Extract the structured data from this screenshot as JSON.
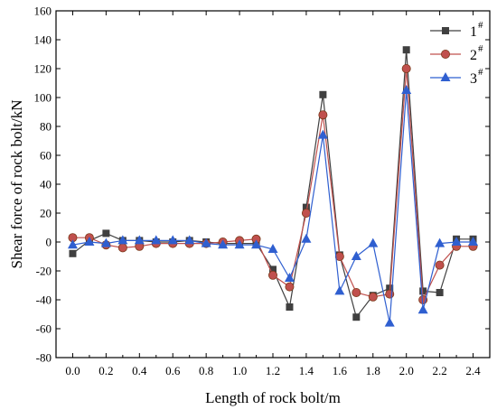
{
  "chart_data": {
    "type": "line",
    "title": "",
    "xlabel": "Length of rock bolt/m",
    "ylabel": "Shear force of rock bolt/kN",
    "xlim": [
      -0.1,
      2.5
    ],
    "ylim": [
      -80,
      160
    ],
    "xticks": [
      "0.0",
      "0.2",
      "0.4",
      "0.6",
      "0.8",
      "1.0",
      "1.2",
      "1.4",
      "1.6",
      "1.8",
      "2.0",
      "2.2",
      "2.4"
    ],
    "yticks": [
      "-80",
      "-60",
      "-40",
      "-20",
      "0",
      "20",
      "40",
      "60",
      "80",
      "100",
      "120",
      "140",
      "160"
    ],
    "legend_position": "top-right",
    "x": [
      0.0,
      0.1,
      0.2,
      0.3,
      0.4,
      0.5,
      0.6,
      0.7,
      0.8,
      0.9,
      1.0,
      1.1,
      1.2,
      1.3,
      1.4,
      1.5,
      1.6,
      1.7,
      1.8,
      1.9,
      2.0,
      2.1,
      2.2,
      2.3,
      2.4
    ],
    "series": [
      {
        "name": "1",
        "name_sup": "#",
        "marker": "square",
        "color": "#404040",
        "values": [
          -8,
          1,
          6,
          1,
          1,
          0,
          0,
          1,
          0,
          -1,
          -1,
          -1,
          -19,
          -45,
          24,
          102,
          -9,
          -52,
          -37,
          -32,
          133,
          -34,
          -35,
          2,
          2
        ]
      },
      {
        "name": "2",
        "name_sup": "#",
        "marker": "circle",
        "color": "#c0504d",
        "values": [
          3,
          3,
          -2,
          -4,
          -3,
          -1,
          -1,
          -1,
          -1,
          0,
          1,
          2,
          -23,
          -31,
          20,
          88,
          -10,
          -35,
          -38,
          -36,
          120,
          -40,
          -16,
          -3,
          -3
        ]
      },
      {
        "name": "3",
        "name_sup": "#",
        "marker": "triangle",
        "color": "#2f5fd0",
        "values": [
          -2,
          0,
          -1,
          1,
          1,
          1,
          1,
          1,
          -1,
          -2,
          -2,
          -2,
          -5,
          -25,
          2,
          74,
          -34,
          -10,
          -1,
          -56,
          105,
          -47,
          -1,
          0,
          0
        ]
      }
    ]
  }
}
